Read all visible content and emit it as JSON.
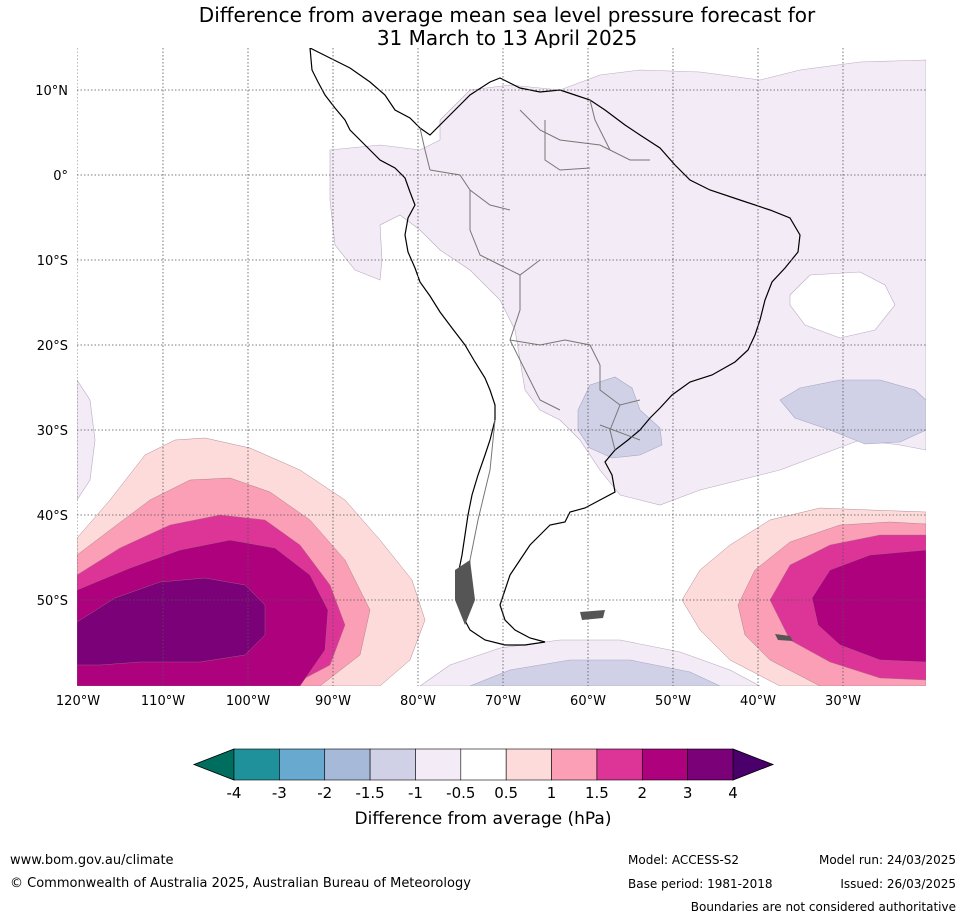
{
  "title": {
    "line1": "Difference from average mean sea level pressure forecast for",
    "line2": "31 March to 13 April 2025"
  },
  "map": {
    "lat_labels": [
      "10°N",
      "0°",
      "10°S",
      "20°S",
      "30°S",
      "40°S",
      "50°S"
    ],
    "lon_labels": [
      "120°W",
      "110°W",
      "100°W",
      "90°W",
      "80°W",
      "70°W",
      "60°W",
      "50°W",
      "40°W",
      "30°W"
    ],
    "colors": {
      "minus4": "#006e5f",
      "minus3_4": "#1f919b",
      "minus2_3": "#67a9cf",
      "minus1_5_2": "#a6b9d8",
      "minus1_1_5": "#d0d1e6",
      "minus0_5_1": "#f3ebf5",
      "neutral": "#ffffff",
      "plus0_5_1": "#fddbdb",
      "plus1_1_5": "#fa9fb5",
      "plus1_5_2": "#dd3497",
      "plus2_3": "#ae017e",
      "plus3_4": "#7a0177",
      "plus4": "#49006a"
    }
  },
  "colorbar": {
    "ticks": [
      "-4",
      "-3",
      "-2",
      "-1.5",
      "-1",
      "-0.5",
      "0.5",
      "1",
      "1.5",
      "2",
      "3",
      "4"
    ],
    "label": "Difference from average (hPa)"
  },
  "footer": {
    "website": "www.bom.gov.au/climate",
    "copyright": "© Commonwealth of Australia 2025, Australian Bureau of Meteorology",
    "model": "Model: ACCESS-S2",
    "base_period": "Base period: 1981-2018",
    "model_run": "Model run: 24/03/2025",
    "issued": "Issued: 26/03/2025",
    "disclaimer": "Boundaries are not considered authoritative"
  }
}
